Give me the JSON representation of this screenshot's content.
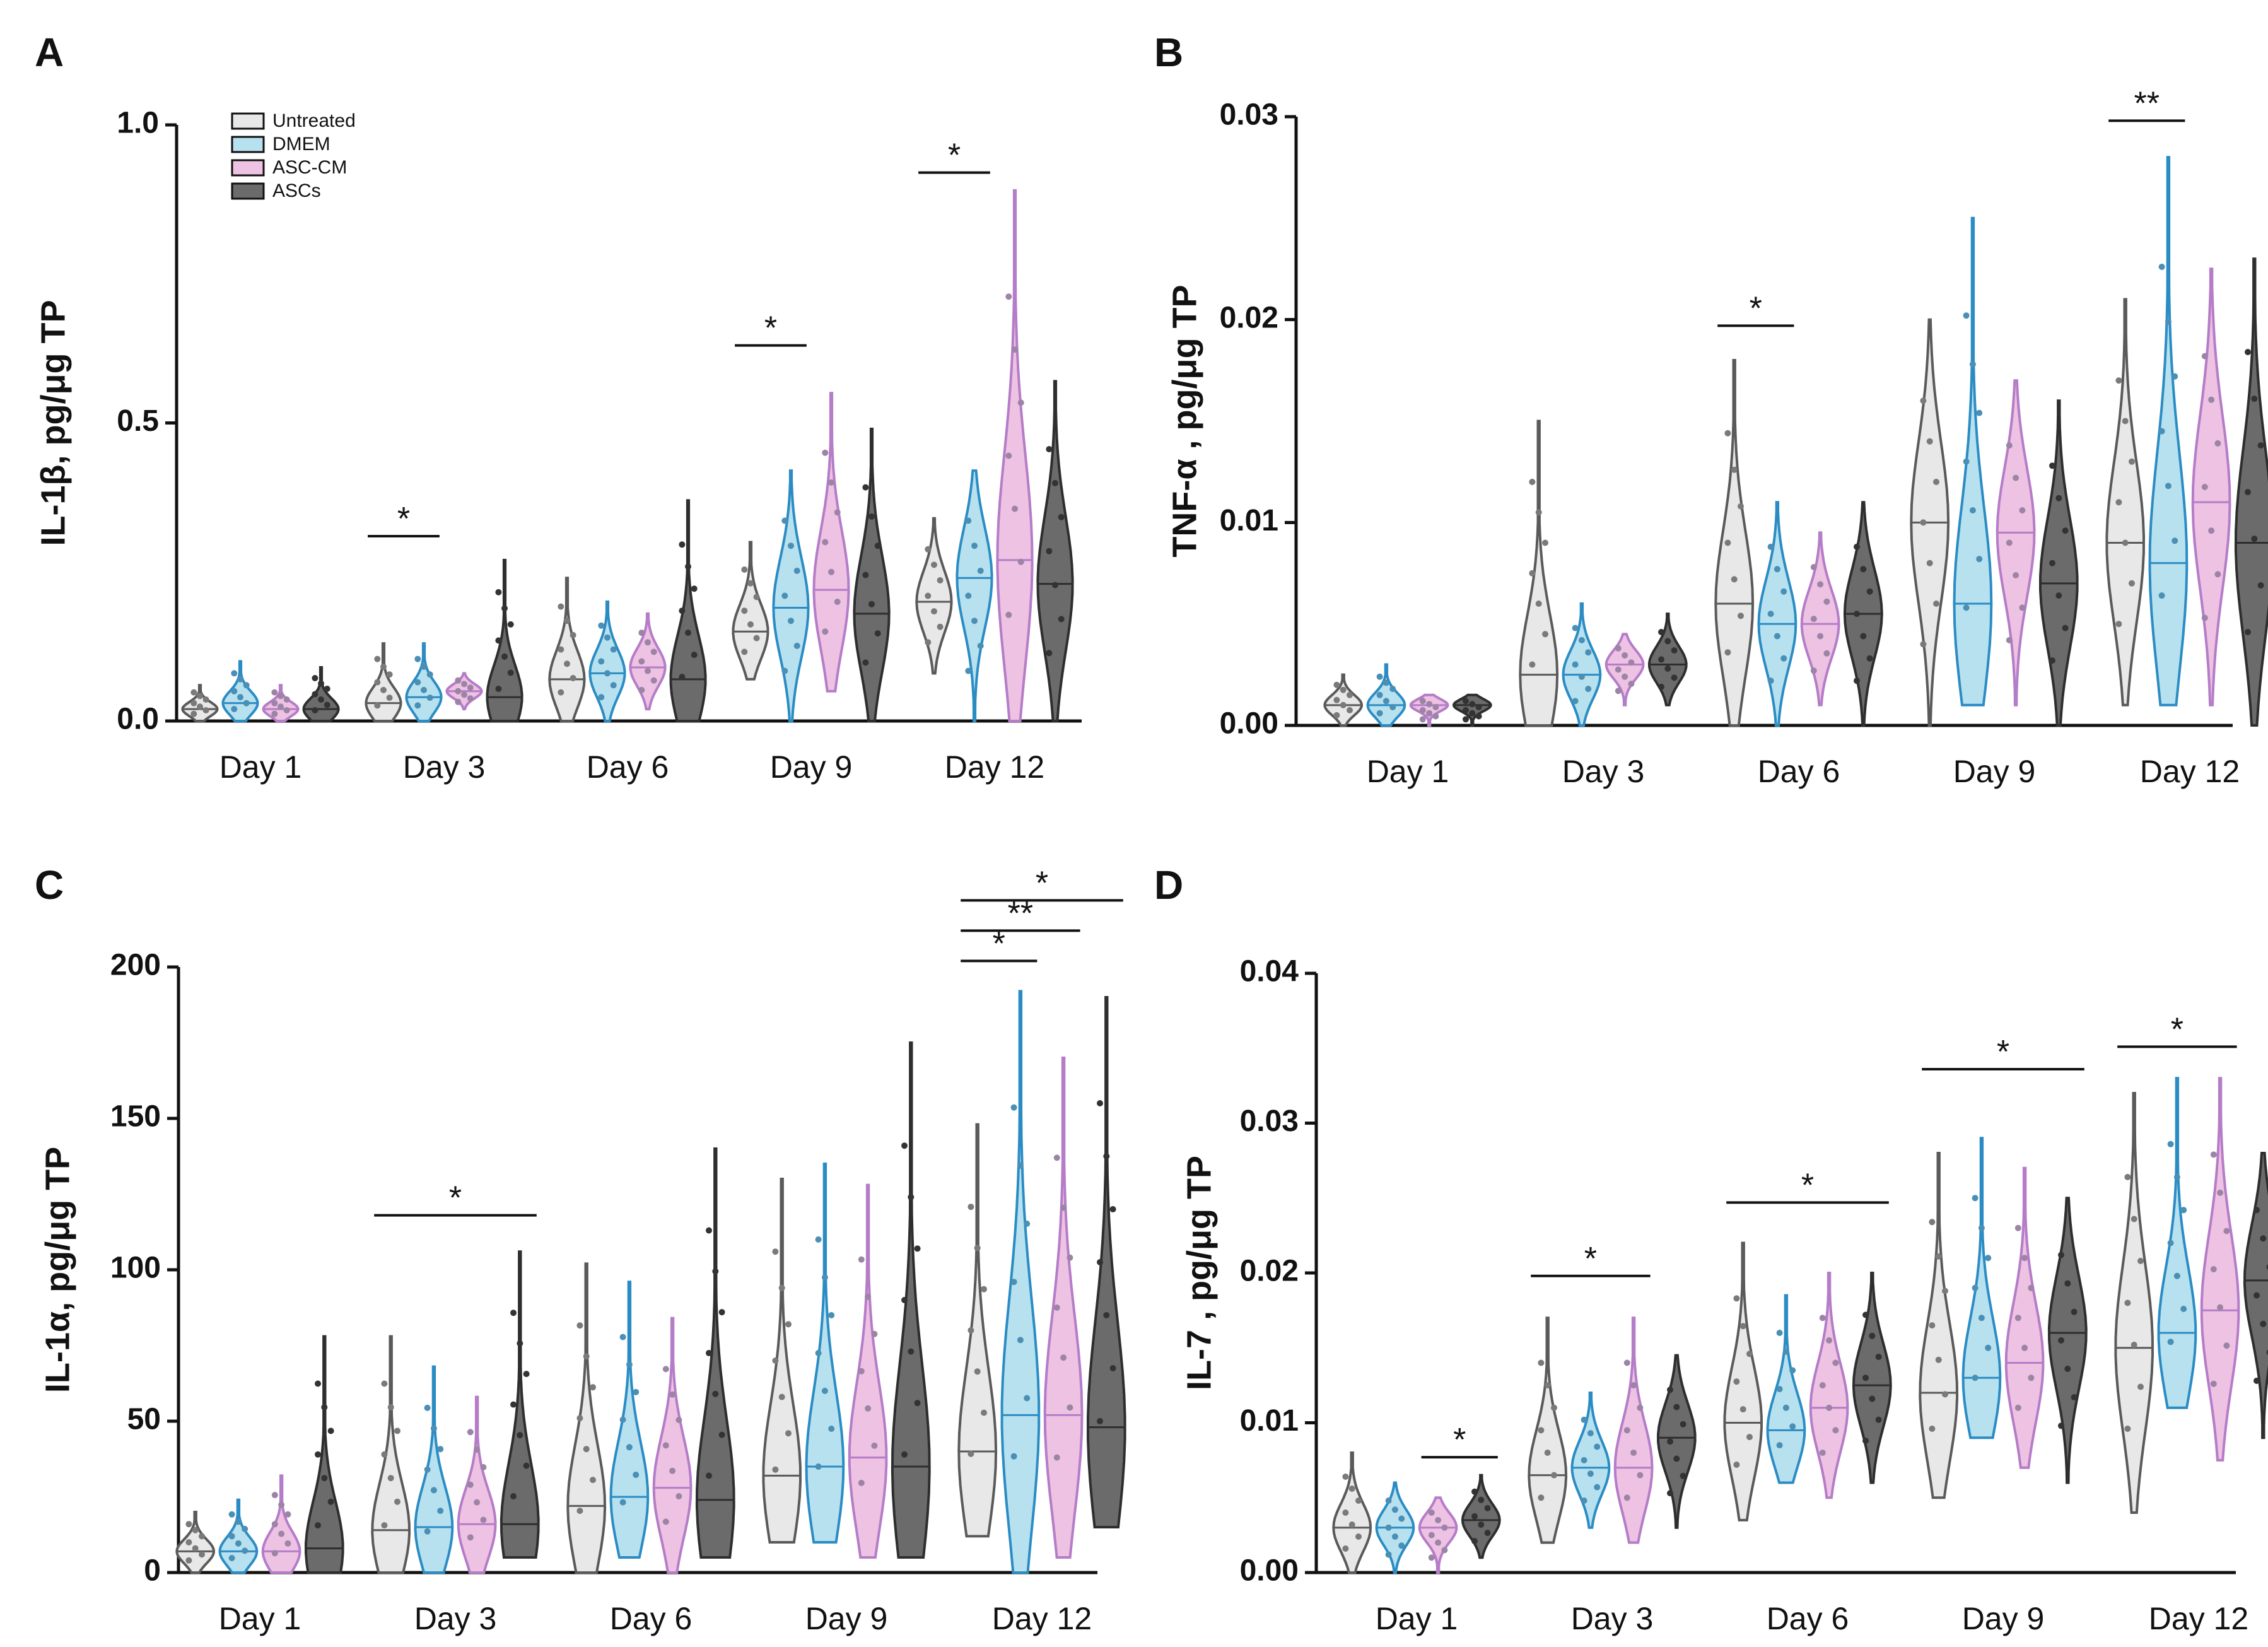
{
  "figure": {
    "groups": [
      {
        "name": "Untreated",
        "fill": "#e8e8e8",
        "stroke": "#5a5a5a",
        "dot": "#7a7a7a"
      },
      {
        "name": "DMEM",
        "fill": "#b7e1ef",
        "stroke": "#2b8cc4",
        "dot": "#4a8fb5"
      },
      {
        "name": "ASC-CM",
        "fill": "#eec2e2",
        "stroke": "#b57cc8",
        "dot": "#9c84a6"
      },
      {
        "name": "ASCs",
        "fill": "#6b6b6b",
        "stroke": "#2e2e2e",
        "dot": "#333333"
      }
    ]
  },
  "chart_data": [
    {
      "panel": "A",
      "type": "violin",
      "ylabel": "IL-1β, pg/μg TP",
      "ylim": [
        0,
        1.0
      ],
      "yticks": [
        "0.0",
        "0.5",
        "1.0"
      ],
      "categories": [
        "Day 1",
        "Day 3",
        "Day 6",
        "Day 9",
        "Day 12"
      ],
      "legend": {
        "position": "top-left",
        "entries": [
          "Untreated",
          "DMEM",
          "ASC-CM",
          "ASCs"
        ]
      },
      "series": [
        {
          "name": "Untreated",
          "values": [
            [
              0.0,
              0.02,
              0.06
            ],
            [
              0.0,
              0.03,
              0.13
            ],
            [
              0.0,
              0.07,
              0.24
            ],
            [
              0.07,
              0.15,
              0.3
            ],
            [
              0.08,
              0.2,
              0.34
            ]
          ]
        },
        {
          "name": "DMEM",
          "values": [
            [
              0.0,
              0.03,
              0.1
            ],
            [
              0.0,
              0.04,
              0.13
            ],
            [
              0.0,
              0.08,
              0.2
            ],
            [
              0.0,
              0.19,
              0.42
            ],
            [
              0.0,
              0.24,
              0.42
            ]
          ]
        },
        {
          "name": "ASC-CM",
          "values": [
            [
              0.0,
              0.02,
              0.06
            ],
            [
              0.02,
              0.05,
              0.08
            ],
            [
              0.02,
              0.09,
              0.18
            ],
            [
              0.05,
              0.22,
              0.55
            ],
            [
              0.0,
              0.27,
              0.89
            ]
          ]
        },
        {
          "name": "ASCs",
          "values": [
            [
              0.0,
              0.02,
              0.09
            ],
            [
              0.0,
              0.04,
              0.27
            ],
            [
              0.0,
              0.07,
              0.37
            ],
            [
              0.0,
              0.18,
              0.49
            ],
            [
              0.0,
              0.23,
              0.57
            ]
          ]
        }
      ],
      "significance": [
        {
          "day": 1,
          "from": 0,
          "to": 1,
          "label": "*",
          "y": 0.31
        },
        {
          "day": 3,
          "from": 0,
          "to": 1,
          "label": "*",
          "y": 0.63
        },
        {
          "day": 4,
          "from": 0,
          "to": 1,
          "label": "*",
          "y": 0.92
        }
      ]
    },
    {
      "panel": "B",
      "type": "violin",
      "ylabel": "TNF-α , pg/μg TP",
      "ylim": [
        0,
        0.03
      ],
      "yticks": [
        "0.00",
        "0.01",
        "0.02",
        "0.03"
      ],
      "categories": [
        "Day 1",
        "Day 3",
        "Day 6",
        "Day 9",
        "Day 12"
      ],
      "series": [
        {
          "name": "Untreated",
          "values": [
            [
              0.0,
              0.001,
              0.0025
            ],
            [
              0.0,
              0.0025,
              0.015
            ],
            [
              0.0,
              0.006,
              0.018
            ],
            [
              0.0,
              0.01,
              0.02
            ],
            [
              0.001,
              0.009,
              0.021
            ]
          ]
        },
        {
          "name": "DMEM",
          "values": [
            [
              0.0,
              0.001,
              0.003
            ],
            [
              0.0,
              0.0025,
              0.006
            ],
            [
              0.0,
              0.005,
              0.011
            ],
            [
              0.001,
              0.006,
              0.025
            ],
            [
              0.001,
              0.008,
              0.028
            ]
          ]
        },
        {
          "name": "ASC-CM",
          "values": [
            [
              0.0,
              0.001,
              0.0015
            ],
            [
              0.001,
              0.003,
              0.0045
            ],
            [
              0.001,
              0.005,
              0.0095
            ],
            [
              0.001,
              0.0095,
              0.017
            ],
            [
              0.001,
              0.011,
              0.0225
            ]
          ]
        },
        {
          "name": "ASCs",
          "values": [
            [
              0.0,
              0.001,
              0.0015
            ],
            [
              0.001,
              0.003,
              0.0055
            ],
            [
              0.0,
              0.0055,
              0.011
            ],
            [
              0.0,
              0.007,
              0.016
            ],
            [
              0.0,
              0.009,
              0.023
            ]
          ]
        }
      ],
      "significance": [
        {
          "day": 2,
          "from": 0,
          "to": 1,
          "label": "*",
          "y": 0.0197
        },
        {
          "day": 4,
          "from": 0,
          "to": 1,
          "label": "**",
          "y": 0.0298
        }
      ]
    },
    {
      "panel": "C",
      "type": "violin",
      "ylabel": "IL-1α,  pg/μg TP",
      "ylim": [
        0,
        200
      ],
      "yticks": [
        "0",
        "50",
        "100",
        "150",
        "200"
      ],
      "categories": [
        "Day 1",
        "Day 3",
        "Day 6",
        "Day 9",
        "Day 12"
      ],
      "series": [
        {
          "name": "Untreated",
          "values": [
            [
              0,
              7,
              20
            ],
            [
              0,
              14,
              78
            ],
            [
              0,
              22,
              102
            ],
            [
              10,
              32,
              130
            ],
            [
              12,
              40,
              148
            ]
          ]
        },
        {
          "name": "DMEM",
          "values": [
            [
              0,
              7,
              24
            ],
            [
              0,
              15,
              68
            ],
            [
              5,
              25,
              96
            ],
            [
              10,
              35,
              135
            ],
            [
              0,
              52,
              192
            ]
          ]
        },
        {
          "name": "ASC-CM",
          "values": [
            [
              0,
              7,
              32
            ],
            [
              0,
              16,
              58
            ],
            [
              0,
              28,
              84
            ],
            [
              5,
              38,
              128
            ],
            [
              5,
              52,
              170
            ]
          ]
        },
        {
          "name": "ASCs",
          "values": [
            [
              0,
              8,
              78
            ],
            [
              5,
              16,
              106
            ],
            [
              5,
              24,
              140
            ],
            [
              5,
              35,
              175
            ],
            [
              15,
              48,
              190
            ]
          ]
        }
      ],
      "significance": [
        {
          "day": 1,
          "from": 0,
          "to": 3,
          "label": "*",
          "y": 118
        },
        {
          "day": 4,
          "from": 0,
          "to": 1,
          "label": "*",
          "y": 202
        },
        {
          "day": 4,
          "from": 0,
          "to": 2,
          "label": "**",
          "y": 212
        },
        {
          "day": 4,
          "from": 0,
          "to": 3,
          "label": "*",
          "y": 222
        }
      ]
    },
    {
      "panel": "D",
      "type": "violin",
      "ylabel": "IL-7 , pg/μg TP",
      "ylim": [
        0,
        0.04
      ],
      "yticks": [
        "0.00",
        "0.01",
        "0.02",
        "0.03",
        "0.04"
      ],
      "categories": [
        "Day 1",
        "Day 3",
        "Day 6",
        "Day 9",
        "Day 12"
      ],
      "series": [
        {
          "name": "Untreated",
          "values": [
            [
              0.0,
              0.003,
              0.008
            ],
            [
              0.002,
              0.0065,
              0.017
            ],
            [
              0.0035,
              0.01,
              0.022
            ],
            [
              0.005,
              0.012,
              0.028
            ],
            [
              0.004,
              0.015,
              0.032
            ]
          ]
        },
        {
          "name": "DMEM",
          "values": [
            [
              0.0,
              0.003,
              0.006
            ],
            [
              0.003,
              0.007,
              0.012
            ],
            [
              0.006,
              0.0095,
              0.0185
            ],
            [
              0.009,
              0.013,
              0.029
            ],
            [
              0.011,
              0.016,
              0.033
            ]
          ]
        },
        {
          "name": "ASC-CM",
          "values": [
            [
              0.0,
              0.003,
              0.005
            ],
            [
              0.002,
              0.007,
              0.017
            ],
            [
              0.005,
              0.011,
              0.02
            ],
            [
              0.007,
              0.014,
              0.027
            ],
            [
              0.0075,
              0.0175,
              0.033
            ]
          ]
        },
        {
          "name": "ASCs",
          "values": [
            [
              0.001,
              0.0035,
              0.0065
            ],
            [
              0.003,
              0.009,
              0.0145
            ],
            [
              0.006,
              0.0125,
              0.02
            ],
            [
              0.006,
              0.016,
              0.025
            ],
            [
              0.009,
              0.0195,
              0.028
            ]
          ]
        }
      ],
      "significance": [
        {
          "day": 0,
          "from": 2,
          "to": 3,
          "label": "*",
          "y": 0.0077
        },
        {
          "day": 1,
          "from": 0,
          "to": 2,
          "label": "*",
          "y": 0.0198
        },
        {
          "day": 2,
          "from": 0,
          "to": 3,
          "label": "*",
          "y": 0.0247
        },
        {
          "day": 3,
          "from": 0,
          "to": 3,
          "label": "*",
          "y": 0.0336
        },
        {
          "day": 4,
          "from": 0,
          "to": 2,
          "label": "*",
          "y": 0.0351
        }
      ]
    }
  ]
}
